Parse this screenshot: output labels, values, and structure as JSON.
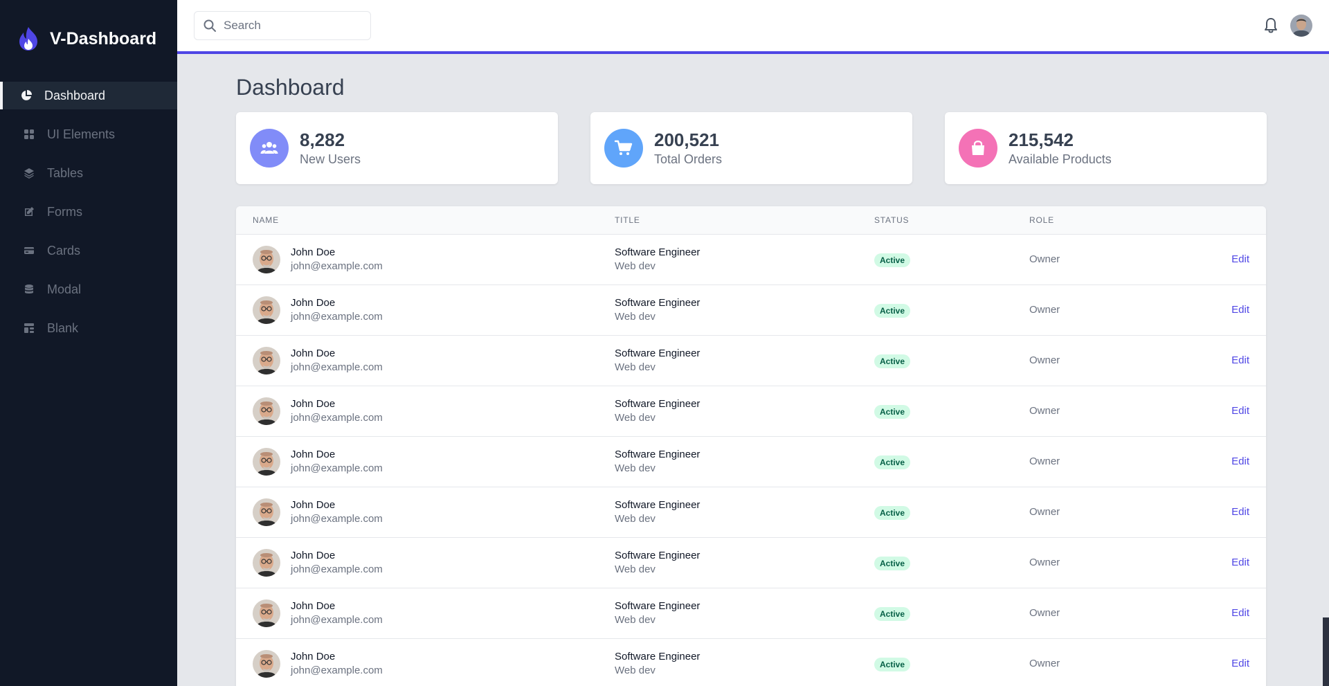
{
  "app": {
    "brand": "V-Dashboard"
  },
  "sidebar": {
    "items": [
      {
        "label": "Dashboard",
        "icon": "chart-pie-icon",
        "active": true
      },
      {
        "label": "UI Elements",
        "icon": "grid-icon",
        "active": false
      },
      {
        "label": "Tables",
        "icon": "layers-icon",
        "active": false
      },
      {
        "label": "Forms",
        "icon": "edit-icon",
        "active": false
      },
      {
        "label": "Cards",
        "icon": "credit-card-icon",
        "active": false
      },
      {
        "label": "Modal",
        "icon": "database-icon",
        "active": false
      },
      {
        "label": "Blank",
        "icon": "template-icon",
        "active": false
      }
    ]
  },
  "header": {
    "search": {
      "placeholder": "Search",
      "value": ""
    }
  },
  "main": {
    "title": "Dashboard",
    "stats": [
      {
        "value": "8,282",
        "label": "New Users",
        "icon": "users-icon",
        "color": "#818cf8"
      },
      {
        "value": "200,521",
        "label": "Total Orders",
        "icon": "cart-icon",
        "color": "#60a5fa"
      },
      {
        "value": "215,542",
        "label": "Available Products",
        "icon": "bag-icon",
        "color": "#f472b6"
      }
    ],
    "table": {
      "headers": [
        "Name",
        "Title",
        "Status",
        "Role"
      ],
      "rows": [
        {
          "name": "John Doe",
          "email": "john@example.com",
          "title": "Software Engineer",
          "dept": "Web dev",
          "status": "Active",
          "role": "Owner",
          "action": "Edit"
        },
        {
          "name": "John Doe",
          "email": "john@example.com",
          "title": "Software Engineer",
          "dept": "Web dev",
          "status": "Active",
          "role": "Owner",
          "action": "Edit"
        },
        {
          "name": "John Doe",
          "email": "john@example.com",
          "title": "Software Engineer",
          "dept": "Web dev",
          "status": "Active",
          "role": "Owner",
          "action": "Edit"
        },
        {
          "name": "John Doe",
          "email": "john@example.com",
          "title": "Software Engineer",
          "dept": "Web dev",
          "status": "Active",
          "role": "Owner",
          "action": "Edit"
        },
        {
          "name": "John Doe",
          "email": "john@example.com",
          "title": "Software Engineer",
          "dept": "Web dev",
          "status": "Active",
          "role": "Owner",
          "action": "Edit"
        },
        {
          "name": "John Doe",
          "email": "john@example.com",
          "title": "Software Engineer",
          "dept": "Web dev",
          "status": "Active",
          "role": "Owner",
          "action": "Edit"
        },
        {
          "name": "John Doe",
          "email": "john@example.com",
          "title": "Software Engineer",
          "dept": "Web dev",
          "status": "Active",
          "role": "Owner",
          "action": "Edit"
        },
        {
          "name": "John Doe",
          "email": "john@example.com",
          "title": "Software Engineer",
          "dept": "Web dev",
          "status": "Active",
          "role": "Owner",
          "action": "Edit"
        },
        {
          "name": "John Doe",
          "email": "john@example.com",
          "title": "Software Engineer",
          "dept": "Web dev",
          "status": "Active",
          "role": "Owner",
          "action": "Edit"
        }
      ]
    }
  },
  "colors": {
    "sidebar_bg": "#111827",
    "accent": "#4f46e5",
    "badge_bg": "#d1fae5",
    "badge_text": "#065f46"
  }
}
